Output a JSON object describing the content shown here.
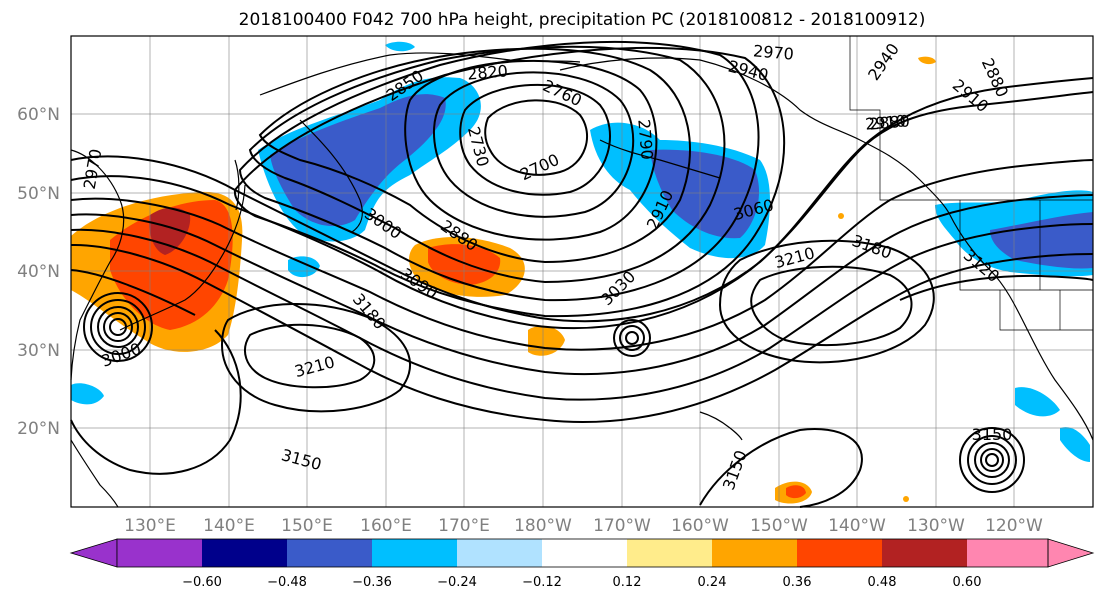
{
  "title": "2018100400 F042 700 hPa height, precipitation PC (2018100812 - 2018100912)",
  "map": {
    "lat_labels": [
      "60°N",
      "50°N",
      "40°N",
      "30°N",
      "20°N"
    ],
    "lon_labels": [
      "130°E",
      "140°E",
      "150°E",
      "160°E",
      "170°E",
      "180°W",
      "170°W",
      "160°W",
      "150°W",
      "140°W",
      "130°W",
      "120°W"
    ],
    "contour_labels": [
      "2970",
      "2940",
      "2850",
      "2820",
      "2760",
      "2700",
      "2730",
      "2790",
      "2910",
      "2880",
      "2880",
      "3000",
      "3090",
      "3060",
      "3030",
      "2910",
      "3210",
      "3180",
      "3120",
      "3180",
      "3210",
      "3150",
      "3150",
      "3150",
      "2940",
      "2880",
      "2910",
      "2970",
      "3000"
    ]
  },
  "colorbar": {
    "ticks": [
      "−0.60",
      "−0.48",
      "−0.36",
      "−0.24",
      "−0.12",
      "0.12",
      "0.24",
      "0.36",
      "0.48",
      "0.60"
    ],
    "colors": [
      "#9932CC",
      "#00008B",
      "#3A5BC9",
      "#00BFFF",
      "#B0E2FF",
      "#FFFFFF",
      "#FFEC8B",
      "#FFA500",
      "#FF4500",
      "#B22222",
      "#FF86B0"
    ]
  }
}
